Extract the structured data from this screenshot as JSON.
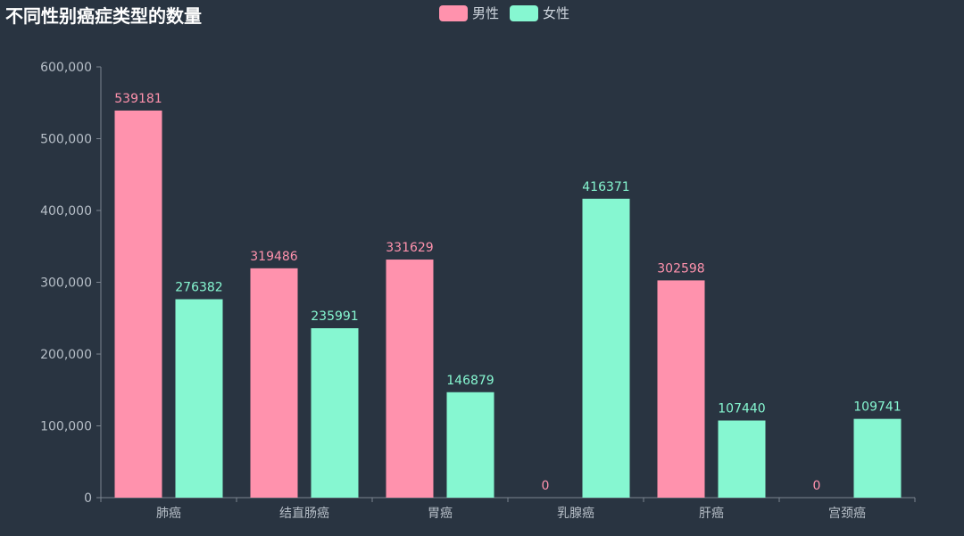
{
  "colors": {
    "background": "#293441",
    "male": "#ff92ad",
    "female": "#86f7d1",
    "axis": "#7c8590",
    "tick_label": "#b7bfc8"
  },
  "chart_data": {
    "type": "bar",
    "title": "不同性别癌症类型的数量",
    "categories": [
      "肺癌",
      "结直肠癌",
      "胃癌",
      "乳腺癌",
      "肝癌",
      "宫颈癌"
    ],
    "series": [
      {
        "name": "男性",
        "values": [
          539181,
          319486,
          331629,
          0,
          302598,
          0
        ]
      },
      {
        "name": "女性",
        "values": [
          276382,
          235991,
          146879,
          416371,
          107440,
          109741
        ]
      }
    ],
    "ylim": [
      0,
      600000
    ],
    "yticks": [
      "0",
      "100,000",
      "200,000",
      "300,000",
      "400,000",
      "500,000",
      "600,000"
    ],
    "xlabel": "",
    "ylabel": "",
    "grid": false,
    "legend_position": "top-center",
    "data_labels": true
  }
}
